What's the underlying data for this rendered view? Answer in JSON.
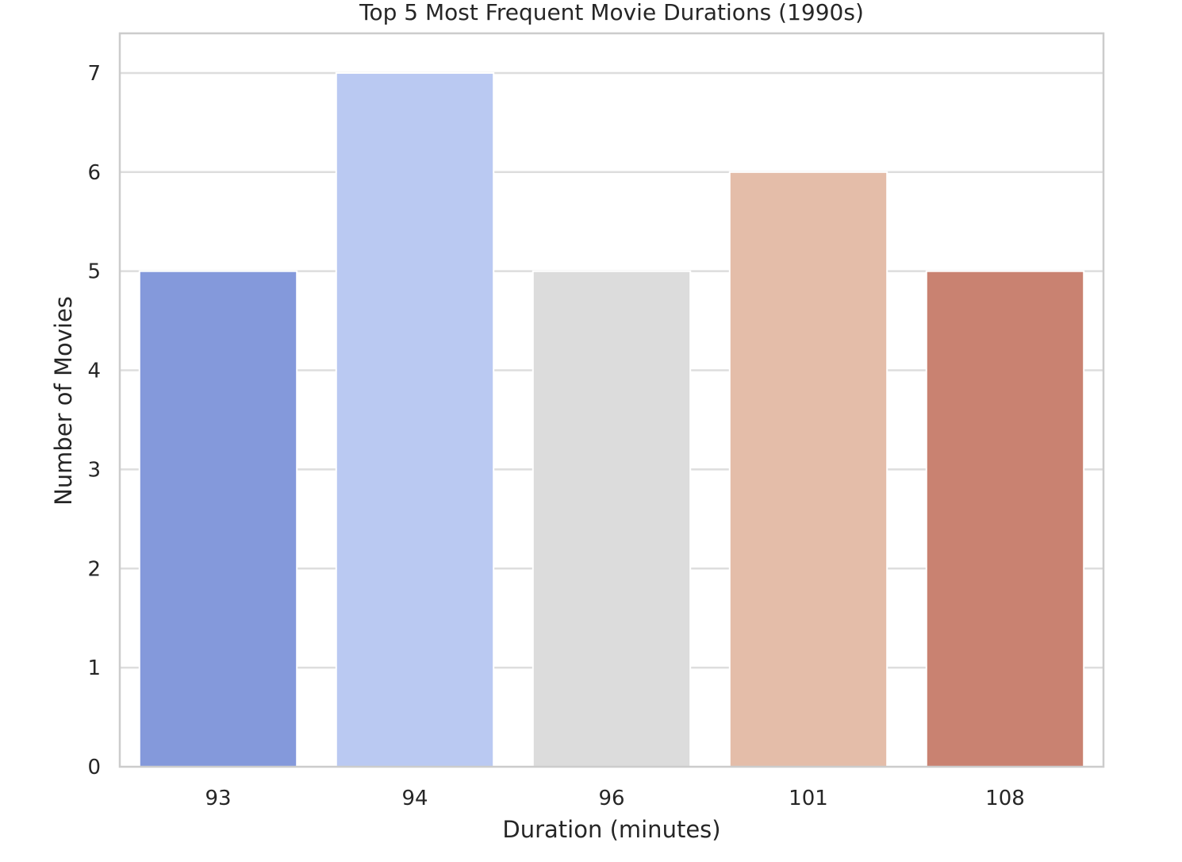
{
  "chart_data": {
    "type": "bar",
    "title": "Top 5 Most Frequent Movie Durations (1990s)",
    "xlabel": "Duration (minutes)",
    "ylabel": "Number of Movies",
    "categories": [
      "93",
      "94",
      "96",
      "101",
      "108"
    ],
    "values": [
      5,
      7,
      5,
      6,
      5
    ],
    "colors": [
      "#8499DB",
      "#BAC9F2",
      "#DCDCDC",
      "#E4BDA9",
      "#C98271"
    ],
    "ylim": [
      0,
      7.4
    ],
    "yticks": [
      0,
      1,
      2,
      3,
      4,
      5,
      6,
      7
    ],
    "grid": true,
    "grid_color": "#DDDDDD",
    "frame_color": "#CCCCCC",
    "legend": "none"
  }
}
